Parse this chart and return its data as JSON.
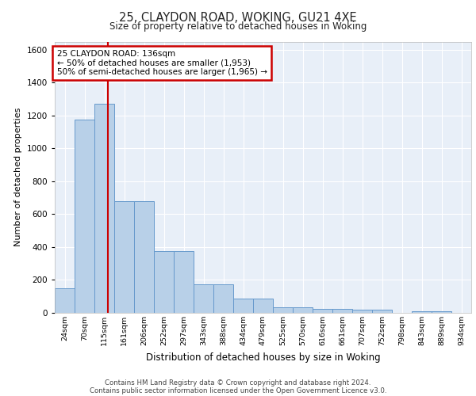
{
  "title": "25, CLAYDON ROAD, WOKING, GU21 4XE",
  "subtitle": "Size of property relative to detached houses in Woking",
  "xlabel": "Distribution of detached houses by size in Woking",
  "ylabel": "Number of detached properties",
  "footer1": "Contains HM Land Registry data © Crown copyright and database right 2024.",
  "footer2": "Contains public sector information licensed under the Open Government Licence v3.0.",
  "bin_labels": [
    "24sqm",
    "70sqm",
    "115sqm",
    "161sqm",
    "206sqm",
    "252sqm",
    "297sqm",
    "343sqm",
    "388sqm",
    "434sqm",
    "479sqm",
    "525sqm",
    "570sqm",
    "616sqm",
    "661sqm",
    "707sqm",
    "752sqm",
    "798sqm",
    "843sqm",
    "889sqm",
    "934sqm"
  ],
  "bar_heights": [
    150,
    1175,
    1270,
    680,
    680,
    375,
    375,
    175,
    175,
    85,
    85,
    35,
    35,
    25,
    25,
    20,
    20,
    0,
    10,
    10,
    0
  ],
  "bar_color": "#b8d0e8",
  "bar_edge_color": "#6699cc",
  "background_color": "#e8eff8",
  "grid_color": "#ffffff",
  "red_line_x": 2.18,
  "annotation_text": "25 CLAYDON ROAD: 136sqm\n← 50% of detached houses are smaller (1,953)\n50% of semi-detached houses are larger (1,965) →",
  "annotation_box_color": "#ffffff",
  "annotation_box_edge": "#cc0000",
  "ylim": [
    0,
    1650
  ],
  "yticks": [
    0,
    200,
    400,
    600,
    800,
    1000,
    1200,
    1400,
    1600
  ]
}
